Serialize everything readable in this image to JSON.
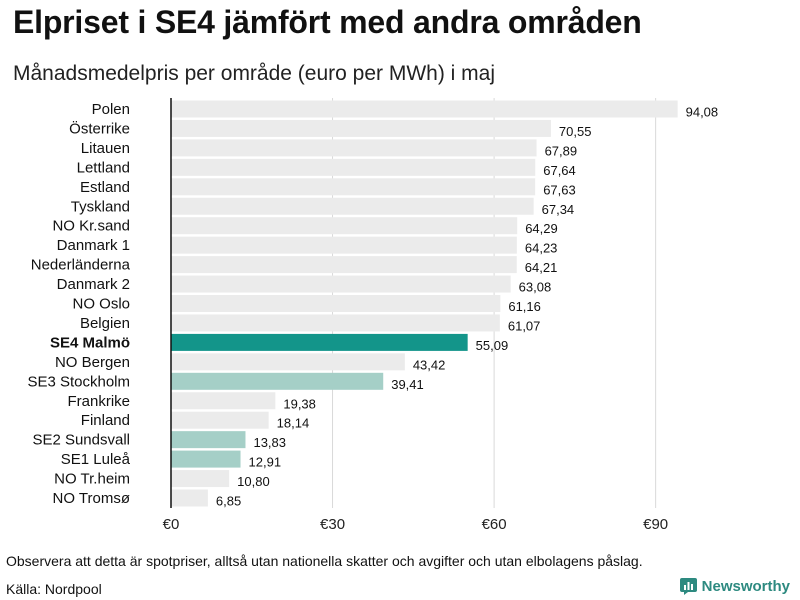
{
  "header": {
    "title": "Elpriset i SE4 jämfört med andra områden",
    "subtitle": "Månadsmedelpris per område (euro per MWh) i maj"
  },
  "footer": {
    "note": "Observera att detta är spotpriser, alltså utan nationella skatter och avgifter och utan elbolagens påslag.",
    "source": "Källa: Nordpool",
    "brand": "Newsworthy"
  },
  "colors": {
    "default_bar": "#ebebeb",
    "highlight_bar": "#13958a",
    "se_bar": "#a5cfc7",
    "axis": "#111111",
    "grid": "#d9d9d9",
    "brand": "#2d8a80"
  },
  "chart_data": {
    "type": "bar",
    "orientation": "horizontal",
    "title": "Elpriset i SE4 jämfört med andra områden",
    "subtitle": "Månadsmedelpris per område (euro per MWh) i maj",
    "xlabel": "",
    "ylabel": "",
    "xlim": [
      0,
      100
    ],
    "x_ticks": [
      0,
      30,
      60,
      90
    ],
    "x_tick_labels": [
      "€0",
      "€30",
      "€60",
      "€90"
    ],
    "grid": true,
    "categories": [
      "Polen",
      "Österrike",
      "Litauen",
      "Lettland",
      "Estland",
      "Tyskland",
      "NO Kr.sand",
      "Danmark 1",
      "Nederländerna",
      "Danmark 2",
      "NO Oslo",
      "Belgien",
      "SE4 Malmö",
      "NO Bergen",
      "SE3 Stockholm",
      "Frankrike",
      "Finland",
      "SE2 Sundsvall",
      "SE1 Luleå",
      "NO Tr.heim",
      "NO Tromsø"
    ],
    "values": [
      94.08,
      70.55,
      67.89,
      67.64,
      67.63,
      67.34,
      64.29,
      64.23,
      64.21,
      63.08,
      61.16,
      61.07,
      55.09,
      43.42,
      39.41,
      19.38,
      18.14,
      13.83,
      12.91,
      10.8,
      6.85
    ],
    "value_labels": [
      "94,08",
      "70,55",
      "67,89",
      "67,64",
      "67,63",
      "67,34",
      "64,29",
      "64,23",
      "64,21",
      "63,08",
      "61,16",
      "61,07",
      "55,09",
      "43,42",
      "39,41",
      "19,38",
      "18,14",
      "13,83",
      "12,91",
      "10,80",
      "6,85"
    ],
    "highlight": [
      "SE4 Malmö"
    ],
    "secondary_highlight": [
      "SE3 Stockholm",
      "SE2 Sundsvall",
      "SE1 Luleå"
    ]
  }
}
